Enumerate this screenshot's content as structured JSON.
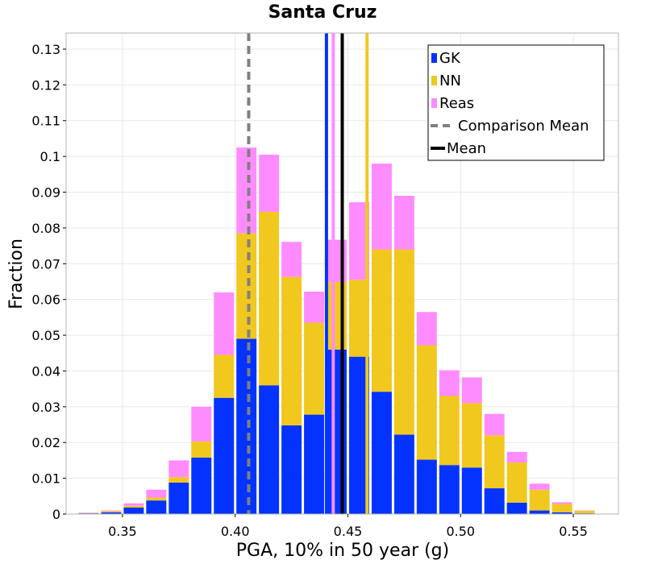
{
  "chart_data": {
    "type": "bar",
    "stacked": true,
    "title": "Santa Cruz",
    "xlabel": "PGA, 10% in 50 year (g)",
    "ylabel": "Fraction",
    "xlim": [
      0.325,
      0.57
    ],
    "ylim": [
      0,
      0.1345
    ],
    "bin_width": 0.01,
    "x_ticks": [
      0.35,
      0.4,
      0.45,
      0.5,
      0.55
    ],
    "x_tick_labels": [
      "0.35",
      "0.40",
      "0.45",
      "0.50",
      "0.55"
    ],
    "y_ticks": [
      0,
      0.01,
      0.02,
      0.03,
      0.04,
      0.05,
      0.06,
      0.07,
      0.08,
      0.09,
      0.1,
      0.11,
      0.12,
      0.13
    ],
    "y_tick_labels": [
      "0",
      "0.01",
      "0.02",
      "0.03",
      "0.04",
      "0.05",
      "0.06",
      "0.07",
      "0.08",
      "0.09",
      "0.1",
      "0.11",
      "0.12",
      "0.13"
    ],
    "bin_centers": [
      0.335,
      0.345,
      0.355,
      0.365,
      0.375,
      0.385,
      0.395,
      0.405,
      0.415,
      0.425,
      0.435,
      0.445,
      0.455,
      0.465,
      0.475,
      0.485,
      0.495,
      0.505,
      0.515,
      0.525,
      0.535,
      0.545,
      0.555
    ],
    "series": [
      {
        "name": "GK",
        "color": "#0433ff",
        "values": [
          0.0002,
          0.0005,
          0.0018,
          0.0038,
          0.0088,
          0.0158,
          0.0325,
          0.049,
          0.036,
          0.0248,
          0.0278,
          0.046,
          0.044,
          0.0342,
          0.0222,
          0.0152,
          0.0137,
          0.013,
          0.0072,
          0.0032,
          0.001,
          0.0005,
          0.0002
        ]
      },
      {
        "name": "NN",
        "color": "#f0c81e",
        "values": [
          0.0001,
          0.0003,
          0.0005,
          0.0008,
          0.0015,
          0.0045,
          0.012,
          0.0295,
          0.0485,
          0.0415,
          0.0257,
          0.0189,
          0.0215,
          0.0398,
          0.0518,
          0.032,
          0.0193,
          0.018,
          0.0148,
          0.0112,
          0.0058,
          0.0023,
          0.0007
        ]
      },
      {
        "name": "Reas",
        "color": "#ff8cff",
        "values": [
          0.0001,
          0.0002,
          0.0007,
          0.0022,
          0.0047,
          0.0097,
          0.0175,
          0.024,
          0.016,
          0.0098,
          0.0087,
          0.0118,
          0.0217,
          0.024,
          0.015,
          0.0093,
          0.0072,
          0.0072,
          0.006,
          0.003,
          0.0017,
          0.0005,
          0.0001
        ]
      }
    ],
    "mean_lines": [
      {
        "name": "GK mean",
        "x": 0.4405,
        "color": "#0433ff"
      },
      {
        "name": "Reas mean",
        "x": 0.4435,
        "color": "#ff8cff"
      },
      {
        "name": "NN mean",
        "x": 0.4585,
        "color": "#f0c81e"
      },
      {
        "name": "Mean",
        "x": 0.4475,
        "color": "#000000"
      }
    ],
    "comparison_mean": {
      "name": "Comparison Mean",
      "x": 0.406,
      "color": "#808080"
    },
    "legend": {
      "placement": "top-right",
      "items": [
        {
          "label": "GK",
          "kind": "bar",
          "color": "#0433ff"
        },
        {
          "label": "NN",
          "kind": "bar",
          "color": "#f0c81e"
        },
        {
          "label": "Reas",
          "kind": "bar",
          "color": "#ff8cff"
        },
        {
          "label": "Comparison Mean",
          "kind": "dashed",
          "color": "#808080"
        },
        {
          "label": "Mean",
          "kind": "solid",
          "color": "#000000"
        }
      ]
    },
    "grid": true
  }
}
